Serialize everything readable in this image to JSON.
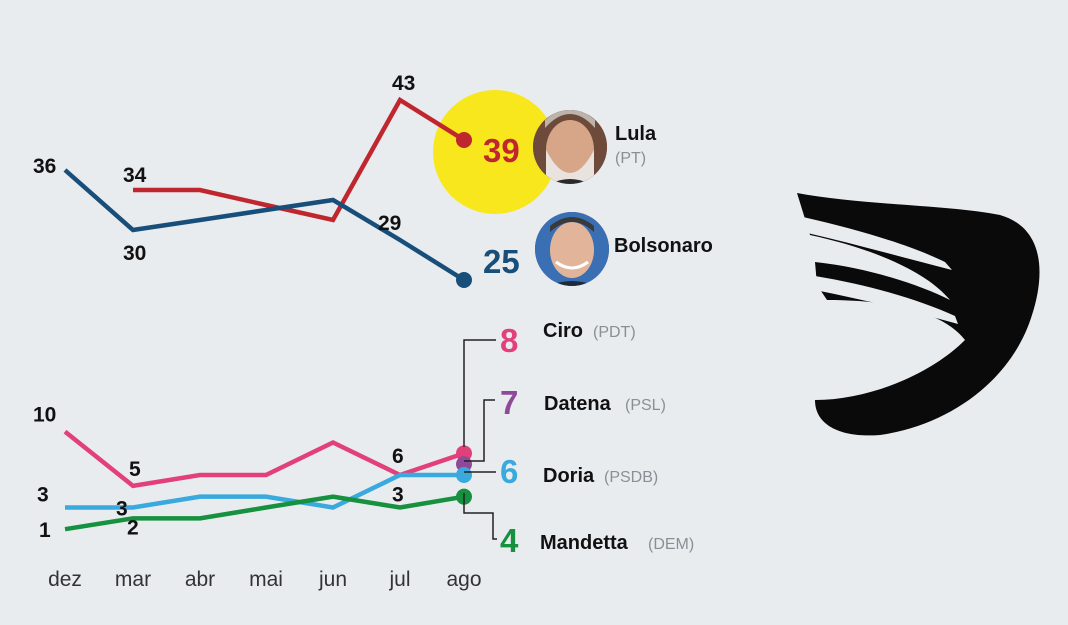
{
  "chart_data": [
    {
      "type": "line",
      "categories": [
        "dez",
        "mar",
        "abr",
        "mai",
        "jun",
        "jul",
        "ago"
      ],
      "ylim": [
        20,
        45
      ],
      "grid": false,
      "series": [
        {
          "name": "Lula",
          "party": "(PT)",
          "color": "#c0262d",
          "values": [
            null,
            34,
            34,
            32.5,
            31,
            43,
            39
          ],
          "labels": [
            null,
            "34",
            null,
            null,
            null,
            "43",
            null
          ],
          "end_label": "39",
          "highlight_color": "#f8e71c",
          "photo": "lula-photo"
        },
        {
          "name": "Bolsonaro",
          "party": "",
          "color": "#184e7a",
          "values": [
            36,
            30,
            31,
            32,
            33,
            29,
            25
          ],
          "labels": [
            "36",
            "30",
            null,
            null,
            null,
            "29",
            null
          ],
          "end_label": "25",
          "photo": "bolsonaro-photo"
        }
      ]
    },
    {
      "type": "line",
      "categories": [
        "dez",
        "mar",
        "abr",
        "mai",
        "jun",
        "jul",
        "ago"
      ],
      "ylim": [
        0,
        12
      ],
      "grid": false,
      "series": [
        {
          "name": "Ciro",
          "party": "(PDT)",
          "color": "#e2407a",
          "values": [
            10,
            5,
            6,
            6,
            9,
            6,
            8
          ],
          "labels": [
            "10",
            "5",
            null,
            null,
            null,
            "6",
            null
          ],
          "end_label": "8"
        },
        {
          "name": "Datena",
          "party": "(PSL)",
          "color": "#8e4a98",
          "values": [
            null,
            null,
            null,
            null,
            null,
            null,
            7
          ],
          "labels": [
            null,
            null,
            null,
            null,
            null,
            null,
            null
          ],
          "end_label": "7"
        },
        {
          "name": "Doria",
          "party": "(PSDB)",
          "color": "#39a9de",
          "values": [
            3,
            3,
            4,
            4,
            3,
            6,
            6
          ],
          "labels": [
            "3",
            "3",
            null,
            null,
            null,
            null,
            null
          ],
          "end_label": "6"
        },
        {
          "name": "Mandetta",
          "party": "(DEM)",
          "color": "#16913f",
          "values": [
            1,
            2,
            2,
            3,
            4,
            3,
            4
          ],
          "labels": [
            "1",
            "2",
            null,
            null,
            null,
            "3",
            null
          ],
          "end_label": "4"
        }
      ]
    }
  ],
  "logo": {
    "name": "brand-logo",
    "color": "#0a0a0a"
  }
}
